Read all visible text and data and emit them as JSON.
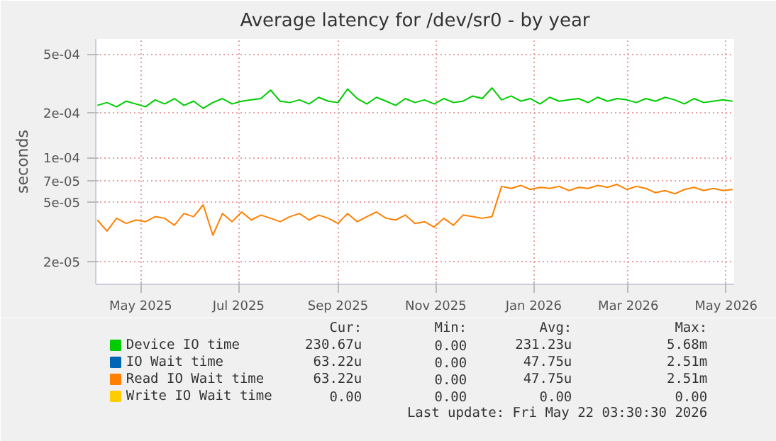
{
  "chart_data": {
    "type": "line",
    "title": "Average latency for /dev/sr0 - by year",
    "ylabel": "seconds",
    "log": "y",
    "grid": true,
    "legend": "bottom",
    "marker": "none",
    "line_style": "solid",
    "x": [
      "2025-04-04",
      "2025-04-10",
      "2025-04-16",
      "2025-04-22",
      "2025-04-28",
      "2025-05-04",
      "2025-05-10",
      "2025-05-16",
      "2025-05-22",
      "2025-05-28",
      "2025-06-03",
      "2025-06-09",
      "2025-06-15",
      "2025-06-21",
      "2025-06-27",
      "2025-07-03",
      "2025-07-09",
      "2025-07-15",
      "2025-07-21",
      "2025-07-27",
      "2025-08-02",
      "2025-08-08",
      "2025-08-14",
      "2025-08-20",
      "2025-08-26",
      "2025-09-01",
      "2025-09-07",
      "2025-09-13",
      "2025-09-19",
      "2025-09-25",
      "2025-10-01",
      "2025-10-07",
      "2025-10-13",
      "2025-10-19",
      "2025-10-25",
      "2025-10-31",
      "2025-11-06",
      "2025-11-12",
      "2025-11-18",
      "2025-11-24",
      "2025-11-30",
      "2025-12-06",
      "2025-12-12",
      "2025-12-18",
      "2025-12-24",
      "2025-12-30",
      "2026-01-05",
      "2026-01-11",
      "2026-01-17",
      "2026-01-23",
      "2026-01-29",
      "2026-02-04",
      "2026-02-10",
      "2026-02-16",
      "2026-02-22",
      "2026-02-28",
      "2026-03-06",
      "2026-03-12",
      "2026-03-18",
      "2026-03-24",
      "2026-03-30",
      "2026-04-05",
      "2026-04-11",
      "2026-04-17",
      "2026-04-23",
      "2026-04-29",
      "2026-05-05"
    ],
    "xlim": [
      "2025-04-03",
      "2026-05-06"
    ],
    "xticks": [
      {
        "value": "2025-05-01",
        "label": "May 2025"
      },
      {
        "value": "2025-07-01",
        "label": "Jul 2025"
      },
      {
        "value": "2025-09-01",
        "label": "Sep 2025"
      },
      {
        "value": "2025-11-01",
        "label": "Nov 2025"
      },
      {
        "value": "2026-01-01",
        "label": "Jan 2026"
      },
      {
        "value": "2026-03-01",
        "label": "Mar 2026"
      },
      {
        "value": "2026-05-01",
        "label": "May 2026"
      }
    ],
    "ylim": [
      1.4e-05,
      0.00063
    ],
    "yticks": [
      {
        "value": 2e-05,
        "label": "2e-05"
      },
      {
        "value": 5e-05,
        "label": "5e-05"
      },
      {
        "value": 7e-05,
        "label": "7e-05"
      },
      {
        "value": 0.0001,
        "label": "1e-04"
      },
      {
        "value": 0.0002,
        "label": "2e-04"
      },
      {
        "value": 0.0005,
        "label": "5e-04"
      }
    ],
    "series": [
      {
        "name": "Device IO time",
        "color": "#00cc00",
        "values": [
          0.000225,
          0.000235,
          0.00022,
          0.00024,
          0.00023,
          0.00022,
          0.000245,
          0.00023,
          0.00025,
          0.000225,
          0.00024,
          0.000215,
          0.000235,
          0.00025,
          0.00023,
          0.00024,
          0.000245,
          0.00025,
          0.000285,
          0.00024,
          0.000235,
          0.000245,
          0.00023,
          0.000255,
          0.00024,
          0.000235,
          0.00029,
          0.00025,
          0.00023,
          0.000255,
          0.00024,
          0.000225,
          0.00025,
          0.000235,
          0.000245,
          0.00023,
          0.00025,
          0.000235,
          0.00024,
          0.00026,
          0.00025,
          0.000295,
          0.000245,
          0.00026,
          0.00024,
          0.00025,
          0.00023,
          0.000255,
          0.00024,
          0.000245,
          0.00025,
          0.000235,
          0.000255,
          0.00024,
          0.00025,
          0.000245,
          0.000235,
          0.00025,
          0.00024,
          0.000255,
          0.000245,
          0.00023,
          0.00025,
          0.000235,
          0.00024,
          0.000245,
          0.00024
        ]
      },
      {
        "name": "IO Wait time",
        "color": "#0066b3",
        "values": [
          null,
          null,
          null,
          null,
          null,
          null,
          null,
          null,
          null,
          null,
          null,
          null,
          null,
          null,
          null,
          null,
          null,
          null,
          null,
          null,
          null,
          null,
          null,
          null,
          null,
          null,
          null,
          null,
          null,
          null,
          null,
          null,
          null,
          null,
          null,
          null,
          null,
          null,
          null,
          null,
          null,
          null,
          null,
          null,
          null,
          null,
          null,
          null,
          null,
          null,
          null,
          null,
          null,
          null,
          null,
          null,
          null,
          null,
          null,
          null,
          null,
          null,
          null,
          null,
          null,
          null,
          null
        ]
      },
      {
        "name": "Read IO Wait time",
        "color": "#ff8000",
        "values": [
          3.8e-05,
          3.2e-05,
          3.9e-05,
          3.6e-05,
          3.8e-05,
          3.7e-05,
          4e-05,
          3.9e-05,
          3.5e-05,
          4.2e-05,
          4e-05,
          4.8e-05,
          3e-05,
          4.2e-05,
          3.7e-05,
          4.3e-05,
          3.8e-05,
          4.1e-05,
          3.9e-05,
          3.7e-05,
          4e-05,
          4.2e-05,
          3.8e-05,
          4.1e-05,
          3.9e-05,
          3.6e-05,
          4.2e-05,
          3.7e-05,
          4e-05,
          4.3e-05,
          3.9e-05,
          3.8e-05,
          4.1e-05,
          3.6e-05,
          3.7e-05,
          3.4e-05,
          3.9e-05,
          3.5e-05,
          4.1e-05,
          4e-05,
          3.9e-05,
          4e-05,
          6.4e-05,
          6.2e-05,
          6.5e-05,
          6.1e-05,
          6.3e-05,
          6.2e-05,
          6.4e-05,
          6e-05,
          6.3e-05,
          6.2e-05,
          6.5e-05,
          6.3e-05,
          6.6e-05,
          6.1e-05,
          6.4e-05,
          6.2e-05,
          5.8e-05,
          6e-05,
          5.7e-05,
          6.1e-05,
          6.3e-05,
          6e-05,
          6.2e-05,
          6e-05,
          6.1e-05
        ]
      },
      {
        "name": "Write IO Wait time",
        "color": "#ffcc00",
        "values": [
          null,
          null,
          null,
          null,
          null,
          null,
          null,
          null,
          null,
          null,
          null,
          null,
          null,
          null,
          null,
          null,
          null,
          null,
          null,
          null,
          null,
          null,
          null,
          null,
          null,
          null,
          null,
          null,
          null,
          null,
          null,
          null,
          null,
          null,
          null,
          null,
          null,
          null,
          null,
          null,
          null,
          null,
          null,
          null,
          null,
          null,
          null,
          null,
          null,
          null,
          null,
          null,
          null,
          null,
          null,
          null,
          null,
          null,
          null,
          null,
          null,
          null,
          null,
          null,
          null,
          null,
          null
        ]
      }
    ],
    "annotations": [
      "Cur:",
      "Min:",
      "Avg:",
      "Max:",
      "230.67u",
      "0.00",
      "231.23u",
      "5.68m",
      "63.22u",
      "0.00",
      "47.75u",
      "2.51m",
      "63.22u",
      "0.00",
      "47.75u",
      "2.51m",
      "0.00",
      "0.00",
      "0.00",
      "0.00",
      "Last update: Fri May 22 03:30:30 2026"
    ]
  }
}
